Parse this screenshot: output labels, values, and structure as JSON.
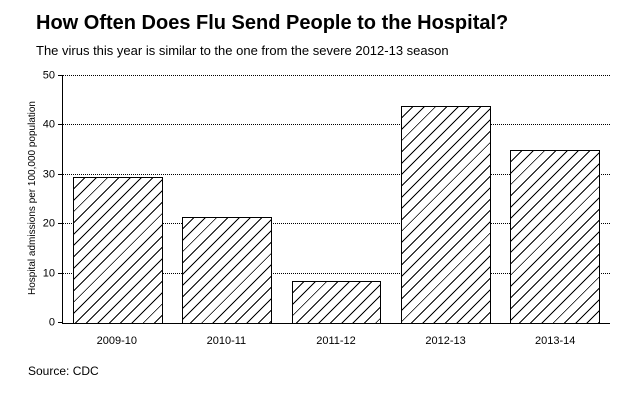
{
  "chart_data": {
    "type": "bar",
    "title": "How Often Does Flu Send People to the Hospital?",
    "subtitle": "The virus this year is similar to the one from the severe 2012-13 season",
    "categories": [
      "2009-10",
      "2010-11",
      "2011-12",
      "2012-13",
      "2013-14"
    ],
    "values": [
      29.5,
      21.5,
      8.5,
      44,
      35
    ],
    "ylabel": "Hospital admissions per 100,000 population",
    "xlabel": "",
    "ylim": [
      0,
      50
    ],
    "yticks": [
      0,
      10,
      20,
      30,
      40,
      50
    ],
    "grid": "horizontal-dotted",
    "legend": "none",
    "bar_style": {
      "fill": "diagonal-hatch",
      "hatch_color": "#000000",
      "background": "#ffffff",
      "border_color": "#000000"
    }
  },
  "source": "Source: CDC"
}
